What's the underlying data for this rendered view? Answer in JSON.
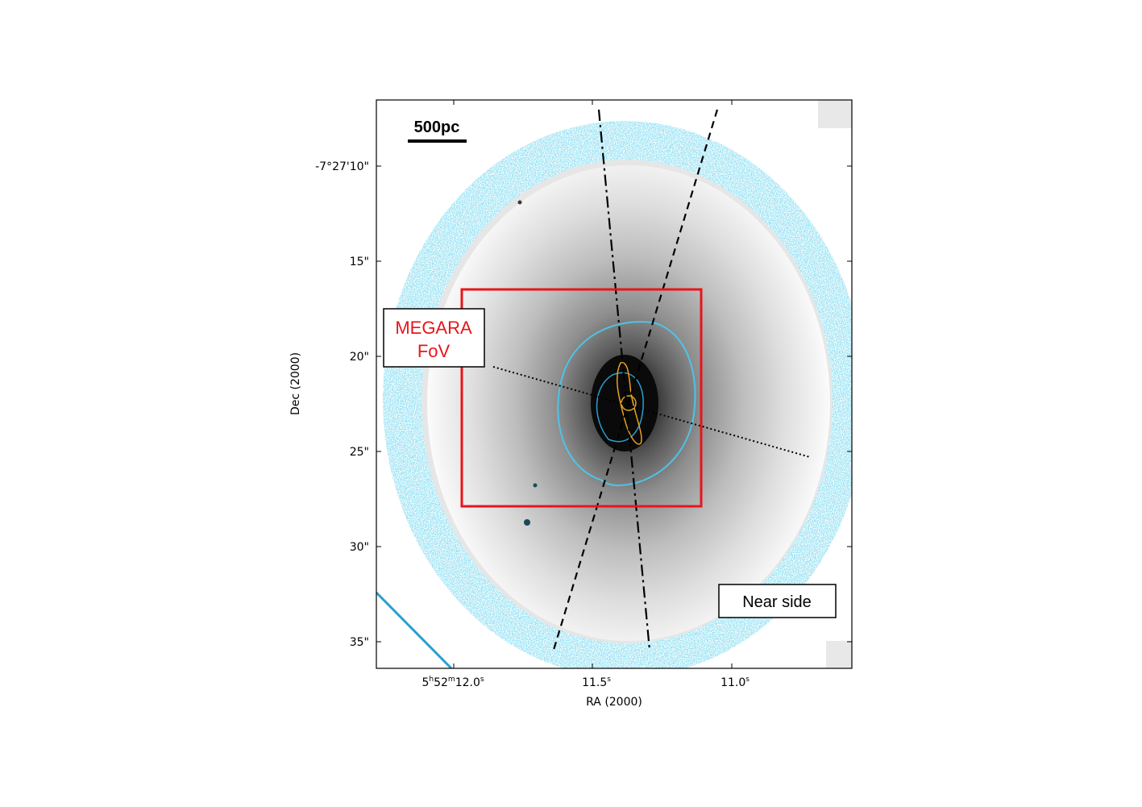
{
  "scale_bar": {
    "label": "500pc"
  },
  "axes": {
    "xlabel": "RA (2000)",
    "ylabel": "Dec (2000)",
    "x_ticks": [
      {
        "label_main": "5",
        "sup_h": "h",
        "mid": "52",
        "sup_m": "m",
        "tail": "12.0",
        "sup_s": "s"
      },
      {
        "label_main": "11.5",
        "sup_s": "s"
      },
      {
        "label_main": "11.0",
        "sup_s": "s"
      }
    ],
    "y_ticks": [
      "-7°27'10\"",
      "15\"",
      "20\"",
      "25\"",
      "30\"",
      "35\""
    ]
  },
  "annotations": {
    "fov_line1": "MEGARA",
    "fov_line2": "FoV",
    "near_side": "Near side"
  },
  "colors": {
    "fov_box": "#e8151b",
    "contour_outer": "#4fc3e6",
    "contour_inner": "#2a9fd0",
    "contour_core": "#e8a020",
    "axes": "#000000"
  },
  "icons": [
    "galaxy-image",
    "scale-bar",
    "dash-dot-line",
    "dashed-line",
    "dotted-line"
  ]
}
